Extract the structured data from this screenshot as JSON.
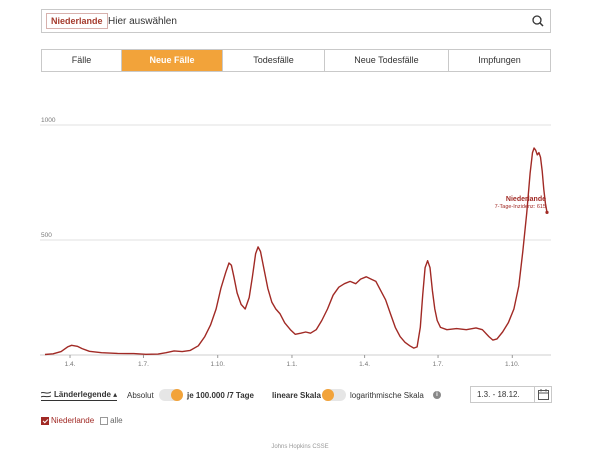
{
  "search": {
    "chip": "Niederlande",
    "placeholder": "Hier auswählen",
    "icon": "search-icon"
  },
  "tabs": [
    {
      "label": "Fälle",
      "active": false
    },
    {
      "label": "Neue Fälle",
      "active": true
    },
    {
      "label": "Todesfälle",
      "active": false
    },
    {
      "label": "Neue Todesfälle",
      "active": false
    },
    {
      "label": "Impfungen",
      "active": false
    }
  ],
  "chart_data": {
    "type": "line",
    "title": "",
    "xlabel": "",
    "ylabel": "",
    "y_ticks": [
      500,
      1000
    ],
    "y_tick_labels": [
      "500",
      "1000"
    ],
    "ylim": [
      0,
      1000
    ],
    "x_ticks": [
      {
        "label": "1.4.",
        "day": 31
      },
      {
        "label": "1.7.",
        "day": 122
      },
      {
        "label": "1.10.",
        "day": 214
      },
      {
        "label": "1.1.",
        "day": 306
      },
      {
        "label": "1.4.",
        "day": 396
      },
      {
        "label": "1.7.",
        "day": 487
      },
      {
        "label": "1.10.",
        "day": 579
      }
    ],
    "x_range": [
      "1.3.",
      "18.12."
    ],
    "grid": true,
    "series": [
      {
        "name": "Niederlande",
        "color": "#a12a25",
        "points": [
          [
            0,
            2
          ],
          [
            10,
            5
          ],
          [
            20,
            15
          ],
          [
            28,
            35
          ],
          [
            33,
            42
          ],
          [
            40,
            38
          ],
          [
            46,
            28
          ],
          [
            55,
            16
          ],
          [
            70,
            10
          ],
          [
            90,
            7
          ],
          [
            110,
            6
          ],
          [
            125,
            3
          ],
          [
            140,
            4
          ],
          [
            150,
            10
          ],
          [
            160,
            18
          ],
          [
            170,
            15
          ],
          [
            180,
            20
          ],
          [
            190,
            40
          ],
          [
            198,
            80
          ],
          [
            205,
            130
          ],
          [
            212,
            200
          ],
          [
            218,
            290
          ],
          [
            224,
            360
          ],
          [
            228,
            400
          ],
          [
            231,
            390
          ],
          [
            234,
            340
          ],
          [
            238,
            270
          ],
          [
            243,
            220
          ],
          [
            248,
            200
          ],
          [
            253,
            250
          ],
          [
            257,
            340
          ],
          [
            261,
            440
          ],
          [
            264,
            470
          ],
          [
            267,
            450
          ],
          [
            271,
            380
          ],
          [
            276,
            290
          ],
          [
            281,
            230
          ],
          [
            286,
            200
          ],
          [
            291,
            180
          ],
          [
            297,
            140
          ],
          [
            304,
            110
          ],
          [
            310,
            90
          ],
          [
            317,
            95
          ],
          [
            323,
            100
          ],
          [
            329,
            95
          ],
          [
            336,
            110
          ],
          [
            343,
            150
          ],
          [
            350,
            200
          ],
          [
            357,
            260
          ],
          [
            364,
            295
          ],
          [
            371,
            310
          ],
          [
            378,
            320
          ],
          [
            385,
            310
          ],
          [
            391,
            330
          ],
          [
            398,
            340
          ],
          [
            404,
            330
          ],
          [
            410,
            320
          ],
          [
            416,
            280
          ],
          [
            422,
            240
          ],
          [
            428,
            180
          ],
          [
            434,
            120
          ],
          [
            440,
            80
          ],
          [
            446,
            55
          ],
          [
            452,
            40
          ],
          [
            457,
            30
          ],
          [
            461,
            35
          ],
          [
            465,
            120
          ],
          [
            468,
            260
          ],
          [
            471,
            380
          ],
          [
            474,
            410
          ],
          [
            477,
            380
          ],
          [
            480,
            280
          ],
          [
            483,
            200
          ],
          [
            486,
            150
          ],
          [
            490,
            120
          ],
          [
            498,
            110
          ],
          [
            510,
            115
          ],
          [
            522,
            110
          ],
          [
            534,
            118
          ],
          [
            542,
            110
          ],
          [
            550,
            80
          ],
          [
            555,
            65
          ],
          [
            560,
            70
          ],
          [
            567,
            100
          ],
          [
            574,
            140
          ],
          [
            581,
            200
          ],
          [
            587,
            300
          ],
          [
            592,
            450
          ],
          [
            597,
            620
          ],
          [
            601,
            790
          ],
          [
            604,
            880
          ],
          [
            606,
            900
          ],
          [
            608,
            890
          ],
          [
            610,
            870
          ],
          [
            612,
            880
          ],
          [
            614,
            860
          ],
          [
            616,
            800
          ],
          [
            618,
            720
          ],
          [
            620,
            660
          ],
          [
            622,
            620
          ]
        ]
      }
    ],
    "annotation": {
      "country": "Niederlande",
      "label": "7-Tage-Inzidenz: 615"
    }
  },
  "controls": {
    "legend_label": "Länderlegende ▴",
    "absolut": "Absolut",
    "je": "je 100.000 /7 Tage",
    "lineare": "lineare Skala",
    "log": "logarithmische Skala",
    "info": "i",
    "date_range": "1.3. - 18.12."
  },
  "checks": {
    "country": "Niederlande",
    "all": "alle"
  },
  "source": "Johns Hopkins CSSE",
  "colors": {
    "accent": "#f2a33a",
    "line": "#a12a25"
  }
}
